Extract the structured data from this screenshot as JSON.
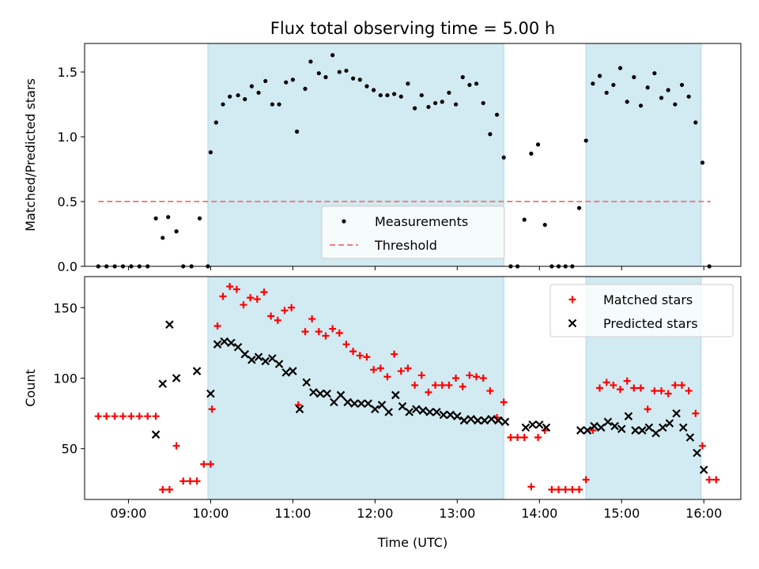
{
  "chart_data": [
    {
      "type": "scatter",
      "title": "Flux total observing time = 5.00 h",
      "xlabel": "",
      "ylabel": "Matched/Predicted stars",
      "ylim": [
        0,
        1.72
      ],
      "yticks": [
        "0.0",
        "0.5",
        "1.0",
        "1.5"
      ],
      "xlim": [
        "08:28",
        "16:27"
      ],
      "xticks": [
        "09:00",
        "10:00",
        "11:00",
        "12:00",
        "13:00",
        "14:00",
        "15:00",
        "16:00"
      ],
      "show_xtick_labels": false,
      "shaded_intervals": [
        [
          "09:58",
          "13:34"
        ],
        [
          "14:34",
          "15:58"
        ]
      ],
      "shade_color": "#add8e6",
      "legend_position": "lower-center",
      "series": [
        {
          "name": "Measurements",
          "marker": "dot",
          "color": "#000000",
          "points": [
            [
              "08:38",
              0
            ],
            [
              "08:44",
              0
            ],
            [
              "08:50",
              0
            ],
            [
              "08:56",
              0
            ],
            [
              "09:02",
              0
            ],
            [
              "09:08",
              0
            ],
            [
              "09:14",
              0
            ],
            [
              "09:20",
              0.37
            ],
            [
              "09:25",
              0.22
            ],
            [
              "09:29",
              0.38
            ],
            [
              "09:35",
              0.27
            ],
            [
              "09:40",
              0
            ],
            [
              "09:46",
              0
            ],
            [
              "09:52",
              0.37
            ],
            [
              "09:58",
              0
            ],
            [
              "10:00",
              0.88
            ],
            [
              "10:04",
              1.11
            ],
            [
              "10:09",
              1.25
            ],
            [
              "10:14",
              1.31
            ],
            [
              "10:20",
              1.32
            ],
            [
              "10:25",
              1.29
            ],
            [
              "10:30",
              1.39
            ],
            [
              "10:35",
              1.34
            ],
            [
              "10:40",
              1.43
            ],
            [
              "10:45",
              1.25
            ],
            [
              "10:50",
              1.25
            ],
            [
              "10:55",
              1.42
            ],
            [
              "11:00",
              1.44
            ],
            [
              "11:03",
              1.04
            ],
            [
              "11:09",
              1.37
            ],
            [
              "11:13",
              1.58
            ],
            [
              "11:19",
              1.49
            ],
            [
              "11:24",
              1.46
            ],
            [
              "11:29",
              1.63
            ],
            [
              "11:34",
              1.5
            ],
            [
              "11:39",
              1.51
            ],
            [
              "11:44",
              1.45
            ],
            [
              "11:49",
              1.44
            ],
            [
              "11:54",
              1.39
            ],
            [
              "11:59",
              1.36
            ],
            [
              "12:04",
              1.32
            ],
            [
              "12:09",
              1.32
            ],
            [
              "12:14",
              1.33
            ],
            [
              "12:19",
              1.31
            ],
            [
              "12:24",
              1.41
            ],
            [
              "12:29",
              1.22
            ],
            [
              "12:34",
              1.32
            ],
            [
              "12:39",
              1.23
            ],
            [
              "12:44",
              1.26
            ],
            [
              "12:49",
              1.27
            ],
            [
              "12:54",
              1.34
            ],
            [
              "12:59",
              1.25
            ],
            [
              "13:04",
              1.46
            ],
            [
              "13:09",
              1.4
            ],
            [
              "13:14",
              1.41
            ],
            [
              "13:19",
              1.26
            ],
            [
              "13:24",
              1.02
            ],
            [
              "13:29",
              1.17
            ],
            [
              "13:34",
              0.84
            ],
            [
              "13:39",
              0
            ],
            [
              "13:44",
              0
            ],
            [
              "13:49",
              0.36
            ],
            [
              "13:54",
              0.87
            ],
            [
              "13:59",
              0.94
            ],
            [
              "14:04",
              0.32
            ],
            [
              "14:09",
              0
            ],
            [
              "14:14",
              0
            ],
            [
              "14:19",
              0
            ],
            [
              "14:24",
              0
            ],
            [
              "14:29",
              0.45
            ],
            [
              "14:34",
              0.97
            ],
            [
              "14:39",
              1.41
            ],
            [
              "14:44",
              1.47
            ],
            [
              "14:49",
              1.34
            ],
            [
              "14:54",
              1.4
            ],
            [
              "14:59",
              1.53
            ],
            [
              "15:04",
              1.27
            ],
            [
              "15:09",
              1.46
            ],
            [
              "15:14",
              1.24
            ],
            [
              "15:19",
              1.38
            ],
            [
              "15:24",
              1.49
            ],
            [
              "15:29",
              1.3
            ],
            [
              "15:34",
              1.36
            ],
            [
              "15:39",
              1.25
            ],
            [
              "15:44",
              1.4
            ],
            [
              "15:49",
              1.31
            ],
            [
              "15:54",
              1.11
            ],
            [
              "15:59",
              0.8
            ],
            [
              "16:04",
              0
            ]
          ]
        },
        {
          "name": "Threshold",
          "marker": "dashed-line",
          "color": "#f08080",
          "points": [
            [
              "08:38",
              0.5
            ],
            [
              "16:05",
              0.5
            ]
          ]
        }
      ]
    },
    {
      "type": "scatter",
      "title": "",
      "xlabel": "Time (UTC)",
      "ylabel": "Count",
      "ylim": [
        14,
        172
      ],
      "yticks": [
        "50",
        "100",
        "150"
      ],
      "xlim": [
        "08:28",
        "16:27"
      ],
      "xticks": [
        "09:00",
        "10:00",
        "11:00",
        "12:00",
        "13:00",
        "14:00",
        "15:00",
        "16:00"
      ],
      "show_xtick_labels": true,
      "shaded_intervals": [
        [
          "09:58",
          "13:34"
        ],
        [
          "14:34",
          "15:58"
        ]
      ],
      "shade_color": "#add8e6",
      "legend_position": "upper-right",
      "series": [
        {
          "name": "Matched stars",
          "marker": "plus",
          "color": "#ff0000",
          "points": [
            [
              "08:38",
              73
            ],
            [
              "08:44",
              73
            ],
            [
              "08:50",
              73
            ],
            [
              "08:56",
              73
            ],
            [
              "09:02",
              73
            ],
            [
              "09:08",
              73
            ],
            [
              "09:14",
              73
            ],
            [
              "09:20",
              73
            ],
            [
              "09:25",
              21
            ],
            [
              "09:30",
              21
            ],
            [
              "09:35",
              52
            ],
            [
              "09:40",
              27
            ],
            [
              "09:45",
              27
            ],
            [
              "09:50",
              27
            ],
            [
              "09:55",
              39
            ],
            [
              "10:00",
              39
            ],
            [
              "10:01",
              78
            ],
            [
              "10:05",
              137
            ],
            [
              "10:09",
              158
            ],
            [
              "10:14",
              165
            ],
            [
              "10:19",
              163
            ],
            [
              "10:24",
              152
            ],
            [
              "10:29",
              157
            ],
            [
              "10:34",
              156
            ],
            [
              "10:39",
              161
            ],
            [
              "10:44",
              144
            ],
            [
              "10:49",
              141
            ],
            [
              "10:54",
              148
            ],
            [
              "10:59",
              150
            ],
            [
              "11:04",
              81
            ],
            [
              "11:09",
              133
            ],
            [
              "11:14",
              142
            ],
            [
              "11:19",
              133
            ],
            [
              "11:24",
              130
            ],
            [
              "11:29",
              135
            ],
            [
              "11:34",
              132
            ],
            [
              "11:39",
              124
            ],
            [
              "11:44",
              119
            ],
            [
              "11:49",
              116
            ],
            [
              "11:54",
              115
            ],
            [
              "11:59",
              106
            ],
            [
              "12:04",
              107
            ],
            [
              "12:09",
              101
            ],
            [
              "12:14",
              117
            ],
            [
              "12:19",
              105
            ],
            [
              "12:24",
              107
            ],
            [
              "12:29",
              95
            ],
            [
              "12:34",
              102
            ],
            [
              "12:39",
              90
            ],
            [
              "12:44",
              95
            ],
            [
              "12:49",
              95
            ],
            [
              "12:54",
              95
            ],
            [
              "12:59",
              100
            ],
            [
              "13:04",
              94
            ],
            [
              "13:09",
              102
            ],
            [
              "13:14",
              101
            ],
            [
              "13:19",
              100
            ],
            [
              "13:24",
              91
            ],
            [
              "13:29",
              72
            ],
            [
              "13:34",
              83
            ],
            [
              "13:39",
              58
            ],
            [
              "13:44",
              58
            ],
            [
              "13:49",
              58
            ],
            [
              "13:54",
              23
            ],
            [
              "13:59",
              58
            ],
            [
              "14:04",
              63
            ],
            [
              "14:09",
              21
            ],
            [
              "14:14",
              21
            ],
            [
              "14:19",
              21
            ],
            [
              "14:24",
              21
            ],
            [
              "14:29",
              21
            ],
            [
              "14:34",
              28
            ],
            [
              "14:39",
              63
            ],
            [
              "14:44",
              93
            ],
            [
              "14:49",
              97
            ],
            [
              "14:54",
              95
            ],
            [
              "14:59",
              92
            ],
            [
              "15:04",
              98
            ],
            [
              "15:09",
              93
            ],
            [
              "15:14",
              93
            ],
            [
              "15:19",
              78
            ],
            [
              "15:24",
              91
            ],
            [
              "15:29",
              91
            ],
            [
              "15:34",
              89
            ],
            [
              "15:39",
              95
            ],
            [
              "15:44",
              95
            ],
            [
              "15:49",
              91
            ],
            [
              "15:54",
              75
            ],
            [
              "15:59",
              52
            ],
            [
              "16:04",
              28
            ],
            [
              "16:09",
              28
            ]
          ]
        },
        {
          "name": "Predicted stars",
          "marker": "x",
          "color": "#000000",
          "points": [
            [
              "09:20",
              60
            ],
            [
              "09:25",
              96
            ],
            [
              "09:30",
              138
            ],
            [
              "09:35",
              100
            ],
            [
              "09:50",
              105
            ],
            [
              "10:00",
              89
            ],
            [
              "10:05",
              124
            ],
            [
              "10:10",
              126
            ],
            [
              "10:15",
              125
            ],
            [
              "10:20",
              122
            ],
            [
              "10:25",
              117
            ],
            [
              "10:30",
              113
            ],
            [
              "10:35",
              115
            ],
            [
              "10:40",
              112
            ],
            [
              "10:45",
              114
            ],
            [
              "10:50",
              110
            ],
            [
              "10:55",
              104
            ],
            [
              "11:00",
              105
            ],
            [
              "11:05",
              78
            ],
            [
              "11:10",
              97
            ],
            [
              "11:15",
              90
            ],
            [
              "11:20",
              89
            ],
            [
              "11:25",
              89
            ],
            [
              "11:30",
              83
            ],
            [
              "11:35",
              88
            ],
            [
              "11:40",
              83
            ],
            [
              "11:45",
              82
            ],
            [
              "11:50",
              82
            ],
            [
              "11:55",
              82
            ],
            [
              "12:00",
              78
            ],
            [
              "12:05",
              81
            ],
            [
              "12:10",
              76
            ],
            [
              "12:15",
              88
            ],
            [
              "12:20",
              80
            ],
            [
              "12:25",
              76
            ],
            [
              "12:30",
              78
            ],
            [
              "12:35",
              77
            ],
            [
              "12:40",
              76
            ],
            [
              "12:45",
              76
            ],
            [
              "12:50",
              74
            ],
            [
              "12:55",
              74
            ],
            [
              "13:00",
              73
            ],
            [
              "13:05",
              70
            ],
            [
              "13:10",
              71
            ],
            [
              "13:15",
              70
            ],
            [
              "13:20",
              70
            ],
            [
              "13:25",
              71
            ],
            [
              "13:30",
              70
            ],
            [
              "13:35",
              69
            ],
            [
              "13:50",
              65
            ],
            [
              "13:55",
              67
            ],
            [
              "14:00",
              67
            ],
            [
              "14:05",
              65
            ],
            [
              "14:30",
              63
            ],
            [
              "14:35",
              63
            ],
            [
              "14:40",
              66
            ],
            [
              "14:45",
              65
            ],
            [
              "14:50",
              69
            ],
            [
              "14:55",
              66
            ],
            [
              "15:00",
              64
            ],
            [
              "15:05",
              73
            ],
            [
              "15:10",
              63
            ],
            [
              "15:15",
              63
            ],
            [
              "15:20",
              65
            ],
            [
              "15:25",
              61
            ],
            [
              "15:30",
              65
            ],
            [
              "15:35",
              68
            ],
            [
              "15:40",
              75
            ],
            [
              "15:45",
              65
            ],
            [
              "15:50",
              58
            ],
            [
              "15:55",
              47
            ],
            [
              "16:00",
              35
            ]
          ]
        }
      ]
    }
  ]
}
